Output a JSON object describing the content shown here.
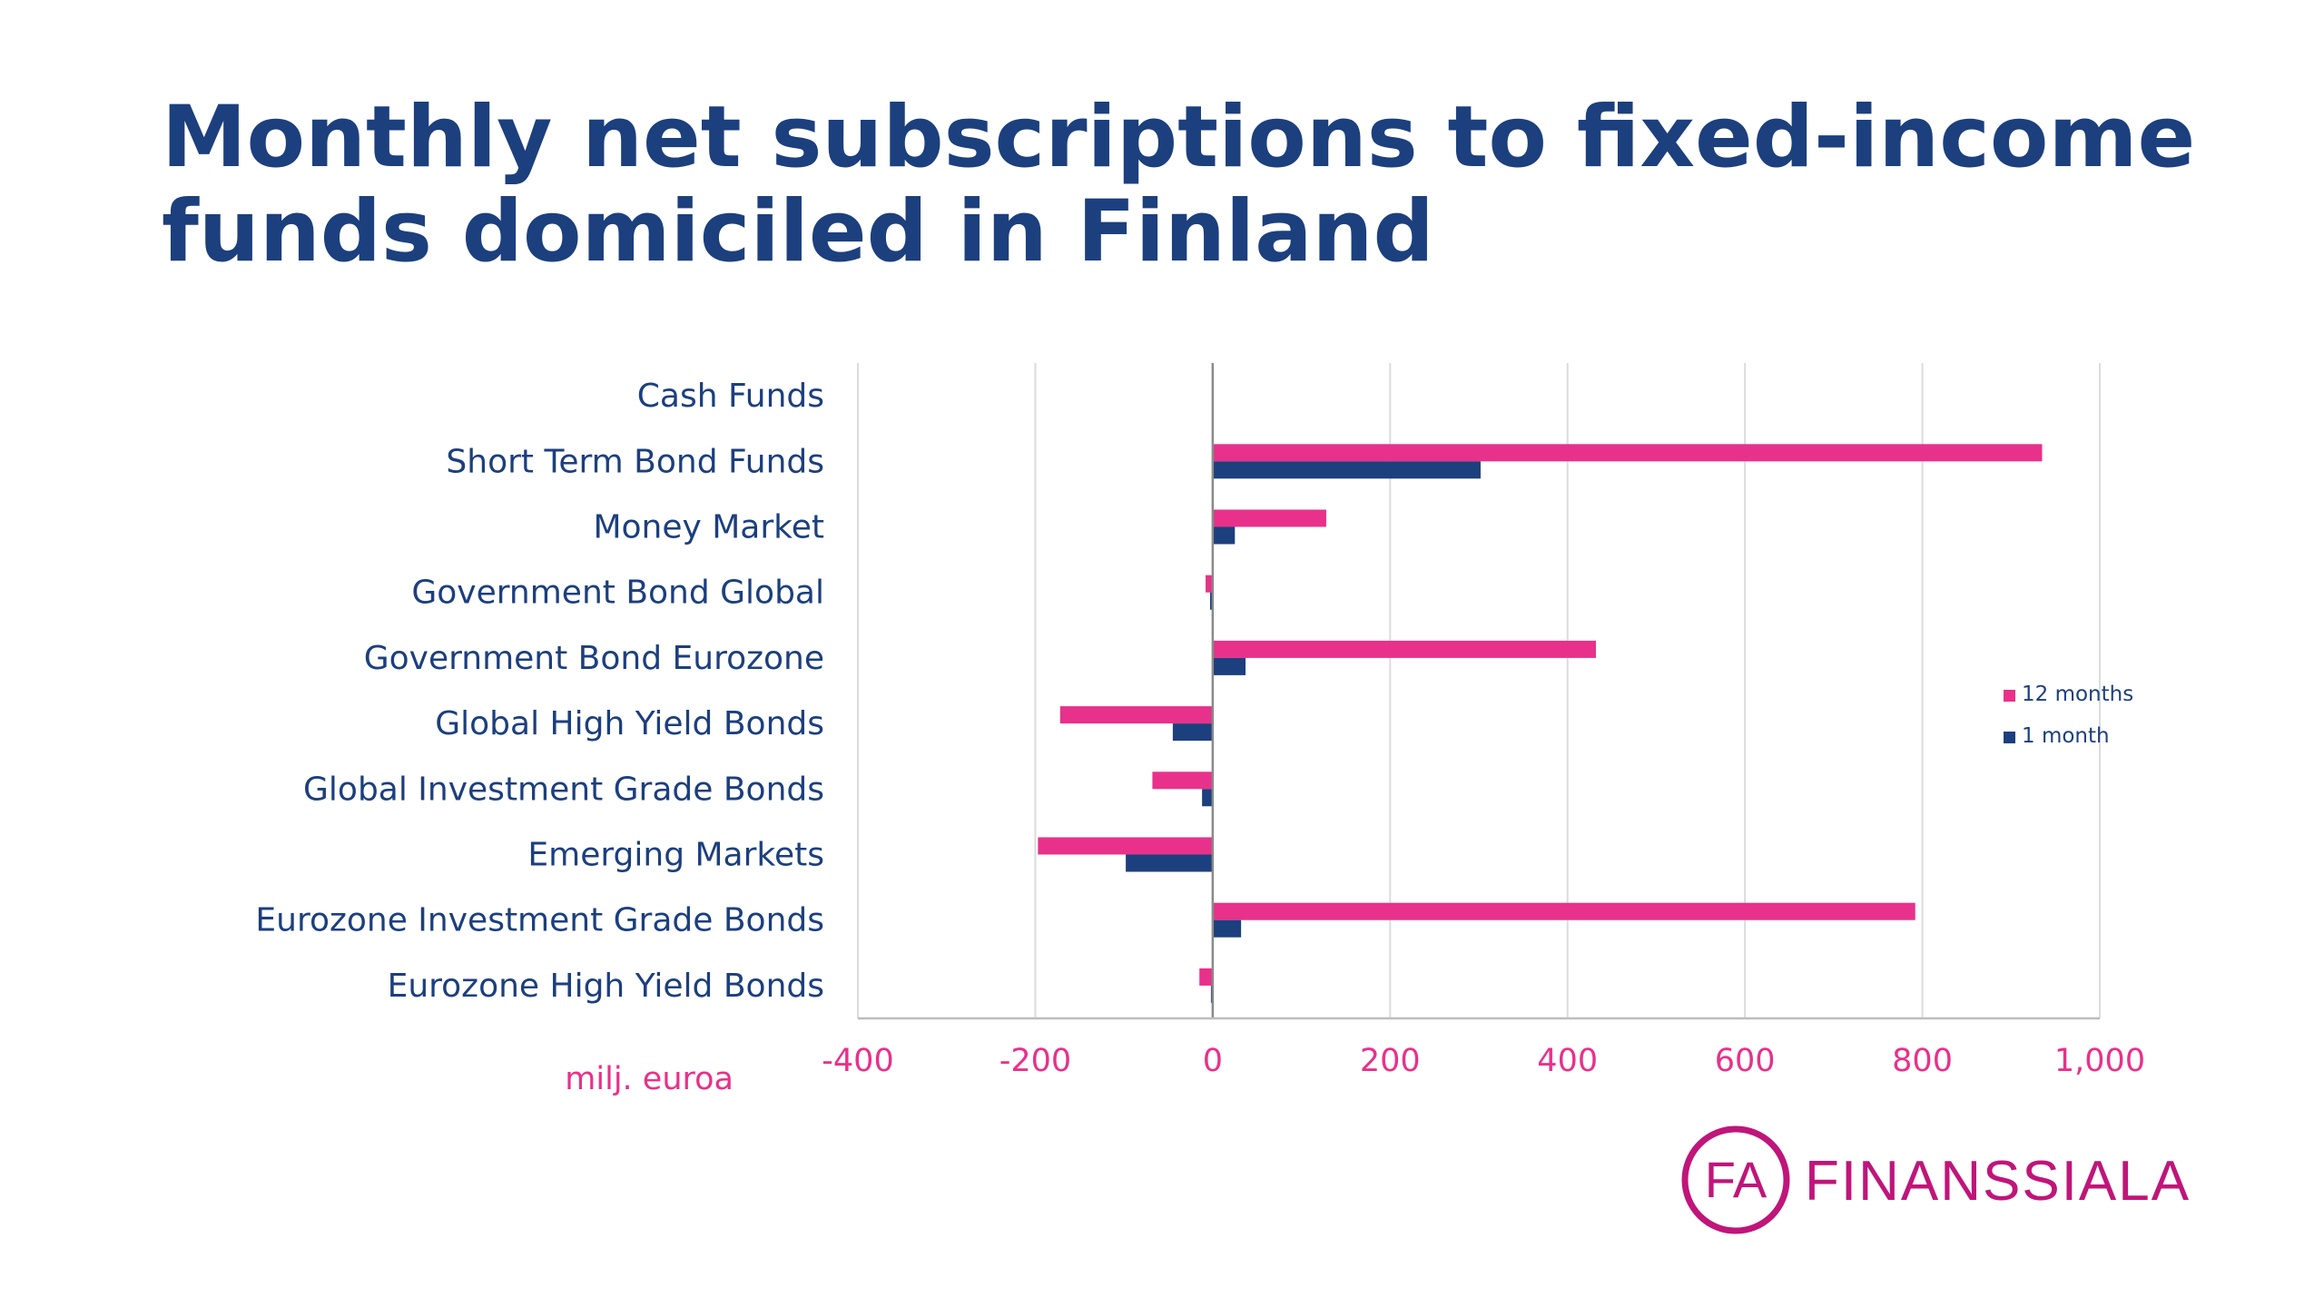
{
  "title_lines": [
    "Monthly net subscriptions to fixed-income",
    "funds domiciled in Finland"
  ],
  "unit_label": "milj. euroa",
  "logo": {
    "mark": "FA",
    "name": "FINANSSIALA"
  },
  "colors": {
    "title": "#1c3f7e",
    "series_12m": "#e8318a",
    "series_1m": "#1c3f7e",
    "axis_labels": "#e8318a",
    "category_labels": "#1c3f7e",
    "grid": "#dcdcdc"
  },
  "chart_data": {
    "type": "bar",
    "orientation": "horizontal",
    "categories": [
      "Cash Funds",
      "Short Term Bond Funds",
      "Money Market",
      "Government Bond Global",
      "Government Bond Eurozone",
      "Global High Yield Bonds",
      "Global Investment Grade Bonds",
      "Emerging Markets",
      "Eurozone Investment Grade Bonds",
      "Eurozone High Yield Bonds"
    ],
    "series": [
      {
        "name": "12 months",
        "color": "#e8318a",
        "values": [
          0,
          935,
          128,
          -8,
          432,
          -172,
          -68,
          -197,
          792,
          -15
        ]
      },
      {
        "name": "1 month",
        "color": "#1c3f7e",
        "values": [
          0,
          302,
          25,
          -3,
          37,
          -45,
          -12,
          -98,
          32,
          -2
        ]
      }
    ],
    "xlim": [
      -400,
      1000
    ],
    "xticks": [
      -400,
      -200,
      0,
      200,
      400,
      600,
      800,
      1000
    ],
    "xtick_labels": [
      "-400",
      "-200",
      "0",
      "200",
      "400",
      "600",
      "800",
      "1,000"
    ],
    "xlabel": "milj. euroa",
    "ylabel": "",
    "grid": "vertical",
    "legend_position": "right"
  }
}
